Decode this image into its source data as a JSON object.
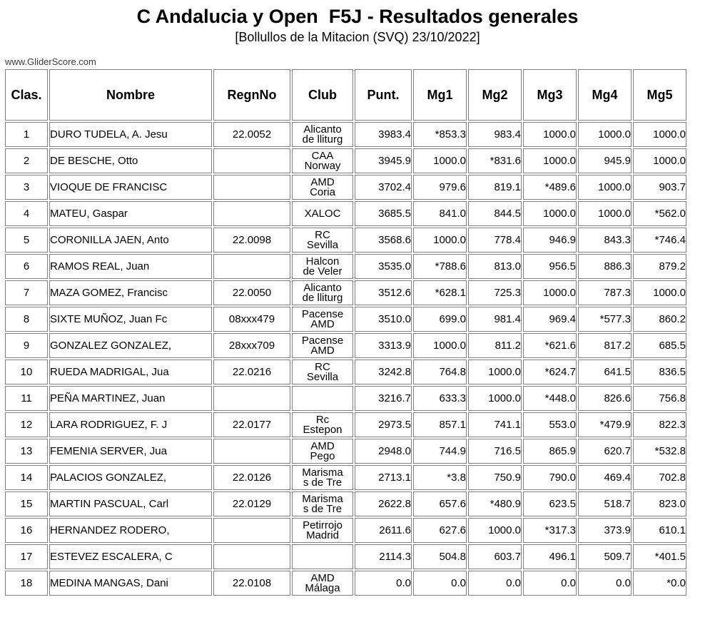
{
  "header": {
    "title": "C Andalucia y Open  F5J - Resultados generales",
    "subtitle": "[Bollullos de la Mitacion (SVQ) 23/10/2022]",
    "source": "www.GliderScore.com"
  },
  "colors": {
    "drop_highlight": "#ccd8ec",
    "grid_border": "#7f7f7f"
  },
  "table": {
    "headers": [
      "Clas.",
      "Nombre",
      "RegnNo",
      "Club",
      "Punt.",
      "Mg1",
      "Mg2",
      "Mg3",
      "Mg4",
      "Mg5"
    ],
    "rows": [
      {
        "clas": "1",
        "nombre": "DURO TUDELA, A. Jesu",
        "regnno": "22.0052",
        "club": "Alicanto\nde lliturg",
        "punt": "3983.4",
        "mg": [
          "*853.3",
          "983.4",
          "1000.0",
          "1000.0",
          "1000.0"
        ]
      },
      {
        "clas": "2",
        "nombre": "DE BESCHE, Otto",
        "regnno": "",
        "club": "CAA\nNorway",
        "punt": "3945.9",
        "mg": [
          "1000.0",
          "*831.6",
          "1000.0",
          "945.9",
          "1000.0"
        ]
      },
      {
        "clas": "3",
        "nombre": "VIOQUE DE FRANCISC",
        "regnno": "",
        "club": "AMD\nCoria",
        "punt": "3702.4",
        "mg": [
          "979.6",
          "819.1",
          "*489.6",
          "1000.0",
          "903.7"
        ]
      },
      {
        "clas": "4",
        "nombre": "MATEU, Gaspar",
        "regnno": "",
        "club": "XALOC",
        "punt": "3685.5",
        "mg": [
          "841.0",
          "844.5",
          "1000.0",
          "1000.0",
          "*562.0"
        ]
      },
      {
        "clas": "5",
        "nombre": "CORONILLA JAEN, Anto",
        "regnno": "22.0098",
        "club": "RC\nSevilla",
        "punt": "3568.6",
        "mg": [
          "1000.0",
          "778.4",
          "946.9",
          "843.3",
          "*746.4"
        ]
      },
      {
        "clas": "6",
        "nombre": "RAMOS REAL, Juan",
        "regnno": "",
        "club": "Halcon\nde Veler",
        "punt": "3535.0",
        "mg": [
          "*788.6",
          "813.0",
          "956.5",
          "886.3",
          "879.2"
        ]
      },
      {
        "clas": "7",
        "nombre": "MAZA GOMEZ, Francisc",
        "regnno": "22.0050",
        "club": "Alicanto\nde lliturg",
        "punt": "3512.6",
        "mg": [
          "*628.1",
          "725.3",
          "1000.0",
          "787.3",
          "1000.0"
        ]
      },
      {
        "clas": "8",
        "nombre": "SIXTE MUÑOZ, Juan Fc",
        "regnno": "08xxx479",
        "club": "Pacense\nAMD",
        "punt": "3510.0",
        "mg": [
          "699.0",
          "981.4",
          "969.4",
          "*577.3",
          "860.2"
        ]
      },
      {
        "clas": "9",
        "nombre": "GONZALEZ GONZALEZ,",
        "regnno": "28xxx709",
        "club": "Pacense\nAMD",
        "punt": "3313.9",
        "mg": [
          "1000.0",
          "811.2",
          "*621.6",
          "817.2",
          "685.5"
        ]
      },
      {
        "clas": "10",
        "nombre": "RUEDA MADRIGAL, Jua",
        "regnno": "22.0216",
        "club": "RC\nSevilla",
        "punt": "3242.8",
        "mg": [
          "764.8",
          "1000.0",
          "*624.7",
          "641.5",
          "836.5"
        ]
      },
      {
        "clas": "11",
        "nombre": "PEÑA MARTINEZ, Juan",
        "regnno": "",
        "club": "",
        "punt": "3216.7",
        "mg": [
          "633.3",
          "1000.0",
          "*448.0",
          "826.6",
          "756.8"
        ]
      },
      {
        "clas": "12",
        "nombre": "LARA RODRIGUEZ, F. J",
        "regnno": "22.0177",
        "club": "Rc\nEstepon",
        "punt": "2973.5",
        "mg": [
          "857.1",
          "741.1",
          "553.0",
          "*479.9",
          "822.3"
        ]
      },
      {
        "clas": "13",
        "nombre": "FEMENIA SERVER, Jua",
        "regnno": "",
        "club": "AMD\nPego",
        "punt": "2948.0",
        "mg": [
          "744.9",
          "716.5",
          "865.9",
          "620.7",
          "*532.8"
        ]
      },
      {
        "clas": "14",
        "nombre": "PALACIOS GONZALEZ,",
        "regnno": "22.0126",
        "club": "Marisma\ns de Tre",
        "punt": "2713.1",
        "mg": [
          "*3.8",
          "750.9",
          "790.0",
          "469.4",
          "702.8"
        ]
      },
      {
        "clas": "15",
        "nombre": "MARTIN PASCUAL, Carl",
        "regnno": "22.0129",
        "club": "Marisma\ns de Tre",
        "punt": "2622.8",
        "mg": [
          "657.6",
          "*480.9",
          "623.5",
          "518.7",
          "823.0"
        ]
      },
      {
        "clas": "16",
        "nombre": "HERNANDEZ RODERO,",
        "regnno": "",
        "club": "Petirrojo\nMadrid",
        "punt": "2611.6",
        "mg": [
          "627.6",
          "1000.0",
          "*317.3",
          "373.9",
          "610.1"
        ]
      },
      {
        "clas": "17",
        "nombre": "ESTEVEZ ESCALERA, C",
        "regnno": "",
        "club": "",
        "punt": "2114.3",
        "mg": [
          "504.8",
          "603.7",
          "496.1",
          "509.7",
          "*401.5"
        ]
      },
      {
        "clas": "18",
        "nombre": "MEDINA MANGAS, Dani",
        "regnno": "22.0108",
        "club": "AMD\nMálaga",
        "punt": "0.0",
        "mg": [
          "0.0",
          "0.0",
          "0.0",
          "0.0",
          "*0.0"
        ]
      }
    ]
  }
}
